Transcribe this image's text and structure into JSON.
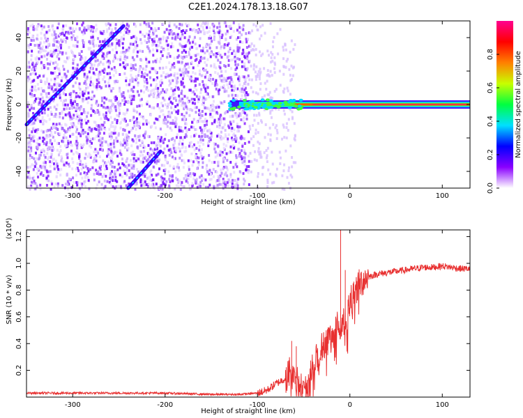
{
  "title": "C2E1.2024.178.13.18.G07",
  "chart_data": [
    {
      "type": "heatmap",
      "xlabel": "Height of straight line (km)",
      "ylabel": "Frequency (Hz)",
      "xlim": [
        -350,
        130
      ],
      "ylim": [
        -50,
        50
      ],
      "xticks": [
        -300,
        -200,
        -100,
        0,
        100
      ],
      "yticks": [
        -40,
        -20,
        0,
        20,
        40
      ],
      "colorbar": {
        "label": "Normalized spectral amplitude",
        "range": [
          0,
          1
        ],
        "ticks": [
          0.0,
          0.2,
          0.4,
          0.6,
          0.8
        ],
        "tick_labels": [
          "0.0",
          "0.2",
          "0.4",
          "0.6",
          "0.8"
        ],
        "colors": [
          "#ffffff",
          "#8a00ff",
          "#0000ff",
          "#00e0ff",
          "#00ff40",
          "#c8ff00",
          "#ff8000",
          "#ff0000",
          "#ff0090"
        ]
      },
      "features": [
        {
          "name": "diagonal track upper",
          "x": [
            -350,
            -245
          ],
          "y": [
            -12,
            47
          ]
        },
        {
          "name": "diagonal track lower",
          "x": [
            -240,
            -205
          ],
          "y": [
            -50,
            -28
          ]
        },
        {
          "name": "carrier line",
          "x": [
            -140,
            130
          ],
          "y": [
            0,
            0
          ]
        }
      ]
    },
    {
      "type": "line",
      "xlabel": "Height of straight line (km)",
      "ylabel": "SNR (10 * v/v)",
      "y_multiplier": "(x10⁴)",
      "xlim": [
        -350,
        130
      ],
      "ylim": [
        0,
        1.25
      ],
      "xticks": [
        -300,
        -200,
        -100,
        0,
        100
      ],
      "yticks": [
        0.2,
        0.4,
        0.6,
        0.8,
        1.0,
        1.2
      ],
      "ytick_labels": [
        "0.2",
        "0.4",
        "0.6",
        "0.8",
        "1.0",
        "1.2"
      ],
      "color": "#e83030",
      "x": [
        -350,
        -300,
        -250,
        -200,
        -150,
        -120,
        -100,
        -90,
        -80,
        -70,
        -65,
        -60,
        -55,
        -50,
        -45,
        -40,
        -35,
        -30,
        -25,
        -20,
        -15,
        -10,
        -5,
        0,
        5,
        10,
        15,
        20,
        30,
        40,
        50,
        60,
        70,
        80,
        90,
        100,
        110,
        120,
        130
      ],
      "y": [
        0.03,
        0.03,
        0.03,
        0.03,
        0.02,
        0.02,
        0.03,
        0.05,
        0.1,
        0.14,
        0.2,
        0.18,
        0.08,
        0.05,
        0.1,
        0.25,
        0.3,
        0.38,
        0.42,
        0.46,
        0.52,
        0.55,
        0.6,
        0.7,
        0.78,
        0.84,
        0.88,
        0.9,
        0.92,
        0.93,
        0.94,
        0.95,
        0.96,
        0.97,
        0.97,
        0.98,
        0.97,
        0.96,
        0.96
      ],
      "spikes": [
        {
          "x": -63,
          "y": 0.42
        },
        {
          "x": -58,
          "y": 0.38
        },
        {
          "x": -10,
          "y": 1.25
        },
        {
          "x": -5,
          "y": 0.95
        }
      ]
    }
  ]
}
